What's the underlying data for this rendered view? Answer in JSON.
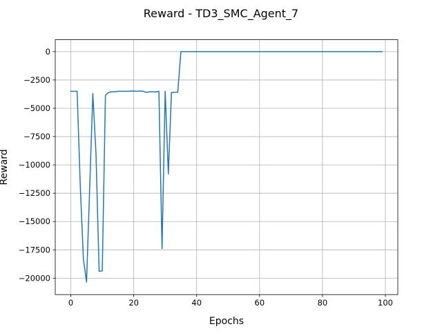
{
  "chart_data": {
    "type": "line",
    "title": "Reward - TD3_SMC_Agent_7",
    "xlabel": "Epochs",
    "ylabel": "Reward",
    "xlim": [
      -4.95,
      103.95
    ],
    "ylim": [
      -21450,
      1050
    ],
    "xticks": [
      0,
      20,
      40,
      60,
      80,
      100
    ],
    "yticks": [
      0,
      -2500,
      -5000,
      -7500,
      -10000,
      -12500,
      -15000,
      -17500,
      -20000
    ],
    "ytick_labels": [
      "0",
      "−2500",
      "−5000",
      "−7500",
      "−10000",
      "−12500",
      "−15000",
      "−17500",
      "−20000"
    ],
    "grid": true,
    "colors": {
      "line": "#1f77b4",
      "grid": "#b0b0b0"
    },
    "series": [
      {
        "x": [
          0,
          1,
          2,
          3,
          4,
          5,
          6,
          7,
          8,
          9,
          10,
          11,
          12,
          13,
          14,
          15,
          16,
          17,
          18,
          19,
          20,
          21,
          22,
          23,
          24,
          25,
          26,
          27,
          28,
          29,
          30,
          31,
          32,
          33,
          34,
          35,
          36,
          37,
          38,
          39,
          40,
          41,
          42,
          43,
          44,
          45,
          46,
          47,
          48,
          49,
          50,
          51,
          52,
          53,
          54,
          55,
          56,
          57,
          58,
          59,
          60,
          61,
          62,
          63,
          64,
          65,
          66,
          67,
          68,
          69,
          70,
          71,
          72,
          73,
          74,
          75,
          76,
          77,
          78,
          79,
          80,
          81,
          82,
          83,
          84,
          85,
          86,
          87,
          88,
          89,
          90,
          91,
          92,
          93,
          94,
          95,
          96,
          97,
          98,
          99
        ],
        "values": [
          -3500,
          -3500,
          -3500,
          -11800,
          -18300,
          -20350,
          -12000,
          -3700,
          -9000,
          -19400,
          -19350,
          -3850,
          -3600,
          -3550,
          -3550,
          -3500,
          -3500,
          -3500,
          -3500,
          -3490,
          -3480,
          -3500,
          -3480,
          -3500,
          -3600,
          -3550,
          -3550,
          -3560,
          -3500,
          -17400,
          -3500,
          -10800,
          -3600,
          -3600,
          -3580,
          0,
          0,
          0,
          0,
          0,
          0,
          0,
          0,
          0,
          0,
          0,
          0,
          0,
          0,
          0,
          0,
          0,
          0,
          0,
          0,
          0,
          0,
          0,
          0,
          0,
          0,
          0,
          0,
          0,
          0,
          0,
          0,
          0,
          0,
          0,
          0,
          0,
          0,
          0,
          0,
          0,
          0,
          0,
          0,
          0,
          0,
          0,
          0,
          0,
          0,
          0,
          0,
          0,
          0,
          0,
          0,
          0,
          0,
          0,
          0,
          0,
          0,
          0,
          0,
          0
        ]
      }
    ]
  }
}
